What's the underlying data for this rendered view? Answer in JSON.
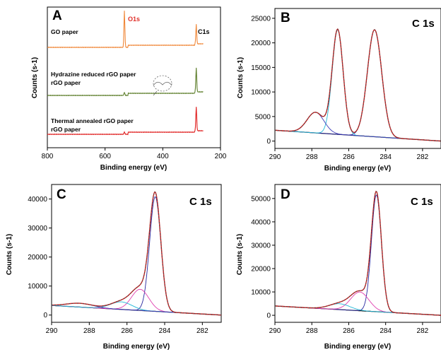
{
  "chart_data": [
    {
      "panel": "A",
      "type": "line",
      "xlabel": "Binding energy (eV)",
      "ylabel": "Counts (s-1)",
      "x_ticks": [
        800,
        600,
        400,
        200
      ],
      "xlim": [
        800,
        200
      ],
      "peak_labels": [
        {
          "text": "O1s",
          "x": 533,
          "color": "#e0302a"
        },
        {
          "text": "C1s",
          "x": 284,
          "color": "#000000"
        }
      ],
      "series": [
        {
          "name": "GO paper",
          "color": "#f0883a",
          "baseline": 0.78,
          "peaks": [
            {
              "x": 533,
              "h": 0.95
            },
            {
              "x": 284,
              "h": 0.5
            }
          ]
        },
        {
          "name": "Hydrazine reduced rGO paper",
          "color": "#5e7f2c",
          "baseline": 0.4,
          "peaks": [
            {
              "x": 533,
              "h": 0.08
            },
            {
              "x": 284,
              "h": 0.62
            }
          ]
        },
        {
          "name": "Thermal annealed rGO paper",
          "color": "#e02020",
          "baseline": 0.06,
          "peaks": [
            {
              "x": 533,
              "h": 0.06
            },
            {
              "x": 284,
              "h": 0.62
            }
          ]
        }
      ]
    },
    {
      "panel": "B",
      "type": "line",
      "tag": "C 1s",
      "xlabel": "Binding energy (eV)",
      "ylabel": "Counts (s-1)",
      "xlim": [
        290,
        281
      ],
      "ylim": [
        -1500,
        27000
      ],
      "x_ticks": [
        290,
        288,
        286,
        284,
        282
      ],
      "y_ticks": [
        0,
        5000,
        10000,
        15000,
        20000,
        25000
      ],
      "background": {
        "left": 2200,
        "right": 0
      },
      "components": [
        {
          "center": 284.6,
          "height": 21800,
          "width": 0.55,
          "color": "#2828a0"
        },
        {
          "center": 286.6,
          "height": 21300,
          "width": 0.42,
          "color": "#22b8d8"
        },
        {
          "center": 287.8,
          "height": 4200,
          "width": 0.65,
          "color": "#3b3bb8"
        }
      ],
      "fit_color": "#d02020",
      "data_color": "#444444"
    },
    {
      "panel": "C",
      "type": "line",
      "tag": "C 1s",
      "xlabel": "Binding energy (eV)",
      "ylabel": "Counts (s-1)",
      "xlim": [
        290,
        281
      ],
      "ylim": [
        -2500,
        45000
      ],
      "x_ticks": [
        290,
        288,
        286,
        284,
        282
      ],
      "y_ticks": [
        0,
        10000,
        20000,
        30000,
        40000
      ],
      "background": {
        "left": 3300,
        "right": 0
      },
      "components": [
        {
          "center": 284.5,
          "height": 39500,
          "width": 0.42,
          "color": "#2828a0"
        },
        {
          "center": 285.3,
          "height": 7300,
          "width": 0.65,
          "color": "#e040b0"
        },
        {
          "center": 286.3,
          "height": 2600,
          "width": 0.8,
          "color": "#22b8d8"
        },
        {
          "center": 288.5,
          "height": 1300,
          "width": 1.0,
          "color": "#3b3bb8"
        }
      ],
      "fit_color": "#d02020",
      "data_color": "#444444"
    },
    {
      "panel": "D",
      "type": "line",
      "tag": "C 1s",
      "xlabel": "Binding energy (eV)",
      "ylabel": "Counts (s-1)",
      "xlim": [
        290,
        281
      ],
      "ylim": [
        -3000,
        56000
      ],
      "x_ticks": [
        290,
        288,
        286,
        284,
        282
      ],
      "y_ticks": [
        0,
        10000,
        20000,
        30000,
        40000,
        50000
      ],
      "background": {
        "left": 4000,
        "right": 0
      },
      "components": [
        {
          "center": 284.5,
          "height": 50000,
          "width": 0.38,
          "color": "#2828a0"
        },
        {
          "center": 285.4,
          "height": 8000,
          "width": 0.7,
          "color": "#e040b0"
        },
        {
          "center": 286.5,
          "height": 2500,
          "width": 0.8,
          "color": "#22b8d8"
        }
      ],
      "fit_color": "#d02020",
      "data_color": "#444444"
    }
  ]
}
